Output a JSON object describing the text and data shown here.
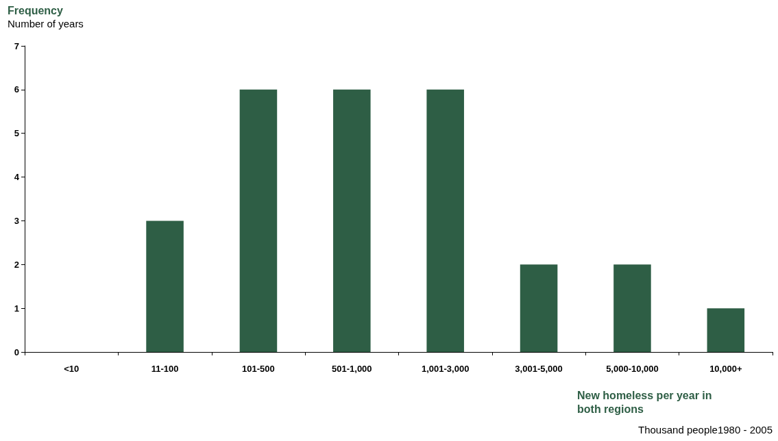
{
  "chart_data": {
    "type": "bar",
    "title": "Frequency",
    "subtitle": "Number of years",
    "xlabel": "New homeless per year in both regions",
    "annotations": [
      "Thousand people1980 - 2005"
    ],
    "categories": [
      "<10",
      "11-100",
      "101-500",
      "501-1,000",
      "1,001-3,000",
      "3,001-5,000",
      "5,000-10,000",
      "10,000+"
    ],
    "values": [
      0,
      3,
      6,
      6,
      6,
      2,
      2,
      1
    ],
    "color": "#2e5e45",
    "ylim": [
      0,
      7
    ],
    "yticks": [
      0,
      1,
      2,
      3,
      4,
      5,
      6,
      7
    ],
    "grid": false
  }
}
